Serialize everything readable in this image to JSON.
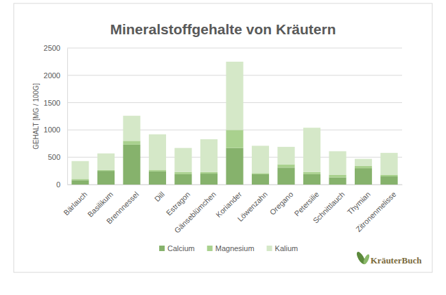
{
  "chart_data": {
    "type": "bar",
    "stacked": true,
    "title": "Mineralstoffgehalte von Kräutern",
    "y_label": "GEHALT [MG / 100G]",
    "logo": "KräuterBuch",
    "categories": [
      "Bärlauch",
      "Basilikum",
      "Brennnessel",
      "Dill",
      "Estragon",
      "Gänseblümchen",
      "Koriander",
      "Löwenzahn",
      "Oregano",
      "Petersilie",
      "Schnittlauch",
      "Thymian",
      "Zitronenmelisse"
    ],
    "series": [
      {
        "name": "Calcium",
        "color": "#86b26c",
        "values": [
          80,
          250,
          730,
          240,
          190,
          200,
          670,
          190,
          310,
          190,
          130,
          300,
          150
        ]
      },
      {
        "name": "Magnesium",
        "color": "#a9d18e",
        "values": [
          20,
          15,
          70,
          30,
          40,
          30,
          330,
          20,
          60,
          40,
          50,
          40,
          30
        ]
      },
      {
        "name": "Kalium",
        "color": "#d5e8c8",
        "values": [
          330,
          305,
          460,
          650,
          440,
          600,
          1250,
          500,
          320,
          810,
          430,
          130,
          400
        ]
      }
    ],
    "ylim": [
      0,
      2500
    ],
    "yticks": [
      0,
      500,
      1000,
      1500,
      2000,
      2500
    ],
    "grid": true,
    "legend": "bottom"
  }
}
